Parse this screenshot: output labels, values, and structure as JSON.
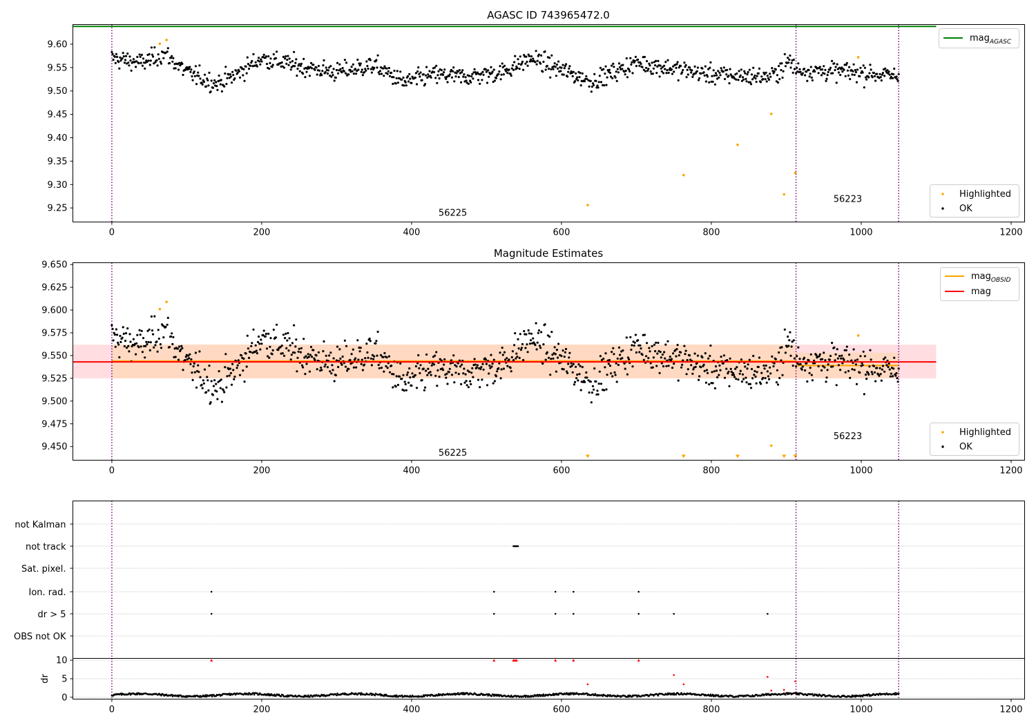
{
  "colors": {
    "ok": "#000000",
    "highlighted": "#ffa500",
    "mag_agasc": "#008000",
    "mag_obsid": "#ffa500",
    "mag": "#ff0000",
    "band_mag": "#ffdde1",
    "band_obsid": "#ffd8be",
    "obs_boundary": "#800080",
    "grid": "#b0b0b0",
    "dr_flag": "#ff0000"
  },
  "chart_data": [
    {
      "type": "scatter",
      "title": "AGASC ID 743965472.0",
      "xlim": [
        -52,
        1218
      ],
      "ylim": [
        9.22,
        9.642
      ],
      "xticks": [
        0,
        200,
        400,
        600,
        800,
        1000,
        1200
      ],
      "yticks": [
        9.25,
        9.3,
        9.35,
        9.4,
        9.45,
        9.5,
        9.55,
        9.6
      ],
      "ytick_decimals": 2,
      "reference_lines": [
        {
          "name": "mag_AGASC",
          "value": 9.638,
          "x_range": [
            -52,
            1100
          ]
        }
      ],
      "obs_boundaries": [
        0,
        913,
        1050
      ],
      "obs_labels": [
        {
          "text": "56225",
          "x": 455,
          "y": 9.233
        },
        {
          "text": "56223",
          "x": 982,
          "y": 9.263
        }
      ],
      "legends": [
        {
          "position": "upper right",
          "items": [
            {
              "label": "mag",
              "sub": "AGASC",
              "kind": "line",
              "color_key": "mag_agasc"
            }
          ]
        },
        {
          "position": "lower right",
          "items": [
            {
              "label": "Highlighted",
              "kind": "dot",
              "color_key": "highlighted"
            },
            {
              "label": "OK",
              "kind": "dot",
              "color_key": "ok"
            }
          ]
        }
      ],
      "highlighted": [
        [
          64,
          9.601
        ],
        [
          73,
          9.609
        ],
        [
          635,
          9.256
        ],
        [
          763,
          9.32
        ],
        [
          835,
          9.385
        ],
        [
          880,
          9.451
        ],
        [
          897,
          9.279
        ],
        [
          912,
          9.325
        ],
        [
          996,
          9.572
        ]
      ],
      "ok_series": {
        "n": 1050,
        "x_start": 0,
        "x_step": 1,
        "mean": 9.543,
        "note": "dense per-frame magnitudes"
      }
    },
    {
      "type": "scatter",
      "title": "Magnitude Estimates",
      "xlim": [
        -52,
        1218
      ],
      "ylim": [
        9.435,
        9.652
      ],
      "xticks": [
        0,
        200,
        400,
        600,
        800,
        1000,
        1200
      ],
      "yticks": [
        9.45,
        9.475,
        9.5,
        9.525,
        9.55,
        9.575,
        9.6,
        9.625,
        9.65
      ],
      "ytick_decimals": 3,
      "mag": {
        "value": 9.543,
        "band": [
          9.525,
          9.562
        ],
        "x_range": [
          -52,
          1100
        ]
      },
      "mag_obsid": [
        {
          "x_range": [
            0,
            913
          ],
          "value": 9.544,
          "band": [
            9.525,
            9.562
          ]
        },
        {
          "x_range": [
            913,
            1050
          ],
          "value": 9.539,
          "band": [
            9.525,
            9.553
          ]
        }
      ],
      "obs_boundaries": [
        0,
        913,
        1050
      ],
      "obs_labels": [
        {
          "text": "56225",
          "x": 455,
          "y": 9.44
        },
        {
          "text": "56223",
          "x": 982,
          "y": 9.458
        }
      ],
      "legends": [
        {
          "position": "upper right",
          "items": [
            {
              "label": "mag",
              "sub": "OBSID",
              "kind": "line",
              "color_key": "mag_obsid"
            },
            {
              "label": "mag",
              "kind": "line",
              "color_key": "mag"
            }
          ]
        },
        {
          "position": "lower right",
          "items": [
            {
              "label": "Highlighted",
              "kind": "dot",
              "color_key": "highlighted"
            },
            {
              "label": "OK",
              "kind": "dot",
              "color_key": "ok"
            }
          ]
        }
      ],
      "highlighted": [
        [
          64,
          9.601
        ],
        [
          73,
          9.609
        ],
        [
          880,
          9.451
        ],
        [
          996,
          9.572
        ]
      ],
      "offscale_markers_x": [
        635,
        763,
        835,
        897,
        912
      ]
    },
    {
      "type": "scatter",
      "title": "",
      "xlim": [
        -52,
        1218
      ],
      "flag_rows": [
        "not Kalman",
        "not track",
        "Sat. pixel.",
        "Ion. rad.",
        "dr > 5",
        "OBS not OK"
      ],
      "flags": {
        "not track": [
          536,
          537,
          538,
          539,
          540,
          541,
          542
        ],
        "Ion. rad.": [
          133,
          510,
          592,
          616,
          703
        ],
        "dr > 5": [
          133,
          510,
          592,
          616,
          703,
          750,
          875
        ]
      },
      "obs_boundaries": [
        0,
        913,
        1050
      ]
    },
    {
      "type": "scatter",
      "title": "",
      "xlim": [
        -52,
        1218
      ],
      "ylim": [
        -0.5,
        10.5
      ],
      "ylabel": "dr",
      "xticks": [
        0,
        200,
        400,
        600,
        800,
        1000,
        1200
      ],
      "yticks": [
        0,
        5,
        10
      ],
      "obs_boundaries": [
        0,
        913,
        1050
      ],
      "dr_outliers": [
        [
          133,
          10
        ],
        [
          510,
          10
        ],
        [
          536,
          10
        ],
        [
          538,
          10
        ],
        [
          540,
          10
        ],
        [
          592,
          10
        ],
        [
          616,
          10
        ],
        [
          703,
          10
        ],
        [
          635,
          3.5
        ],
        [
          750,
          6
        ],
        [
          763,
          3.5
        ],
        [
          875,
          5.5
        ],
        [
          880,
          1.8
        ],
        [
          897,
          2.0
        ],
        [
          912,
          4.3
        ]
      ]
    }
  ]
}
